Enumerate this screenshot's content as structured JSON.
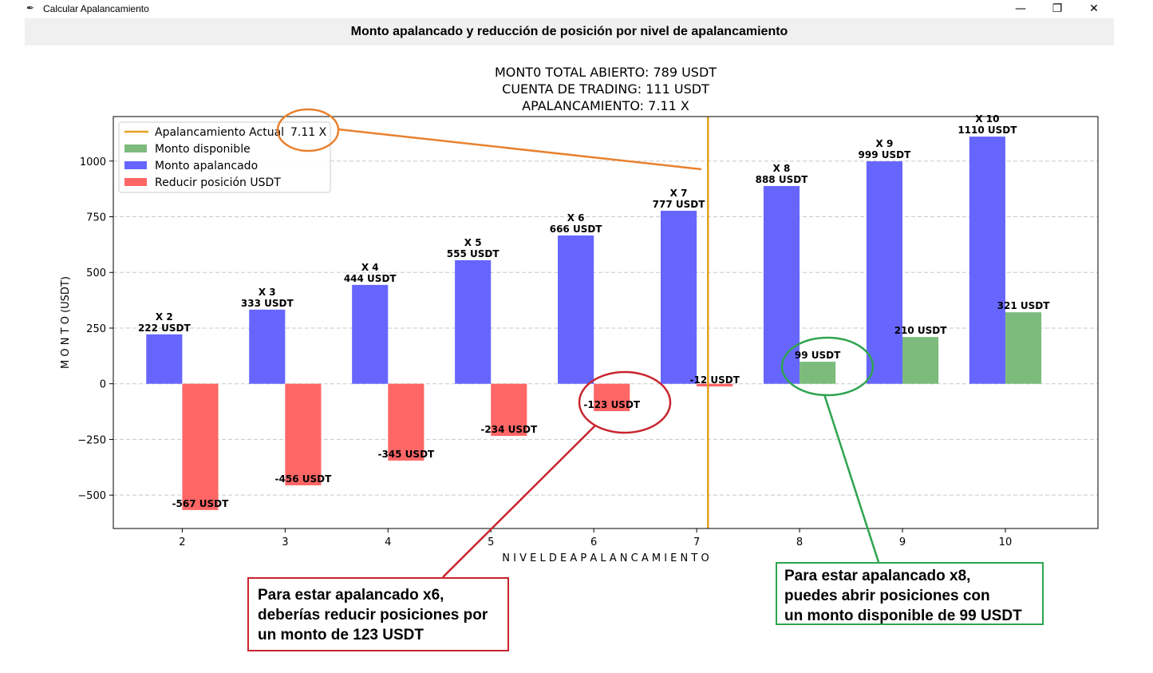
{
  "window": {
    "title": "Calcular Apalancamiento",
    "icon": "feather-icon",
    "controls": {
      "minimize": "—",
      "restore": "❐",
      "close": "✕"
    }
  },
  "header": {
    "title": "Monto apalancado y reducción de posición por nivel de apalancamiento"
  },
  "chart_data": {
    "type": "bar",
    "title_lines": [
      "MONT0 TOTAL ABIERTO: 789 USDT",
      "CUENTA DE TRADING: 111 USDT",
      "APALANCAMIENTO: 7.11  X"
    ],
    "xlabel": "N I V E L   D E   A P A L A N C A M I E N T O",
    "ylabel": "M O N T O   (USDT)",
    "categories": [
      2,
      3,
      4,
      5,
      6,
      7,
      8,
      9,
      10
    ],
    "xlim": [
      1.33,
      10.9
    ],
    "ylim": [
      -650,
      1200
    ],
    "yticks": [
      -500,
      -250,
      0,
      250,
      500,
      750,
      1000
    ],
    "ytick_labels": [
      "−500",
      "−250",
      "0",
      "250",
      "500",
      "750",
      "1000"
    ],
    "grid": "horizontal dashed",
    "legend_position": "top-left",
    "current_leverage": 7.11,
    "current_leverage_label": "7.11 X",
    "series": [
      {
        "name": "Monto apalancado",
        "color": "#6666ff",
        "values": [
          222,
          333,
          444,
          555,
          666,
          777,
          888,
          999,
          1110
        ],
        "labels": [
          [
            "X 2",
            "222 USDT"
          ],
          [
            "X 3",
            "333 USDT"
          ],
          [
            "X 4",
            "444 USDT"
          ],
          [
            "X 5",
            "555 USDT"
          ],
          [
            "X 6",
            "666 USDT"
          ],
          [
            "X 7",
            "777 USDT"
          ],
          [
            "X 8",
            "888 USDT"
          ],
          [
            "X 9",
            "999 USDT"
          ],
          [
            "X 10",
            "1110 USDT"
          ]
        ]
      },
      {
        "name": "Reducir posición USDT",
        "color": "#ff6666",
        "values": [
          -567,
          -456,
          -345,
          -234,
          -123,
          -12,
          null,
          null,
          null
        ],
        "labels": [
          "-567 USDT",
          "-456 USDT",
          "-345 USDT",
          "-234 USDT",
          "-123 USDT",
          "-12 USDT",
          null,
          null,
          null
        ]
      },
      {
        "name": "Monto disponible",
        "color": "#7cbb7c",
        "values": [
          null,
          null,
          null,
          null,
          null,
          null,
          99,
          210,
          321
        ],
        "labels": [
          null,
          null,
          null,
          null,
          null,
          null,
          "99 USDT",
          "210 USDT",
          "321 USDT"
        ]
      }
    ],
    "legend": [
      {
        "name": "Apalancamiento Actual",
        "type": "line",
        "color": "#e6a01e"
      },
      {
        "name": "Monto disponible",
        "type": "patch",
        "color": "#7cbb7c"
      },
      {
        "name": "Monto apalancado",
        "type": "patch",
        "color": "#6666ff"
      },
      {
        "name": "Reducir posición USDT",
        "type": "patch",
        "color": "#ff6666"
      }
    ]
  },
  "annotations": {
    "red_callout": [
      "Para estar apalancado x6,",
      "deberías reducir posiciones por",
      "un monto de 123 USDT"
    ],
    "green_callout": [
      "Para estar apalancado x8,",
      "puedes abrir posiciones con",
      "un monto disponible de 99 USDT"
    ],
    "colors": {
      "orange": "#e8812e",
      "red": "#c8242f",
      "green": "#2ea44f"
    }
  }
}
